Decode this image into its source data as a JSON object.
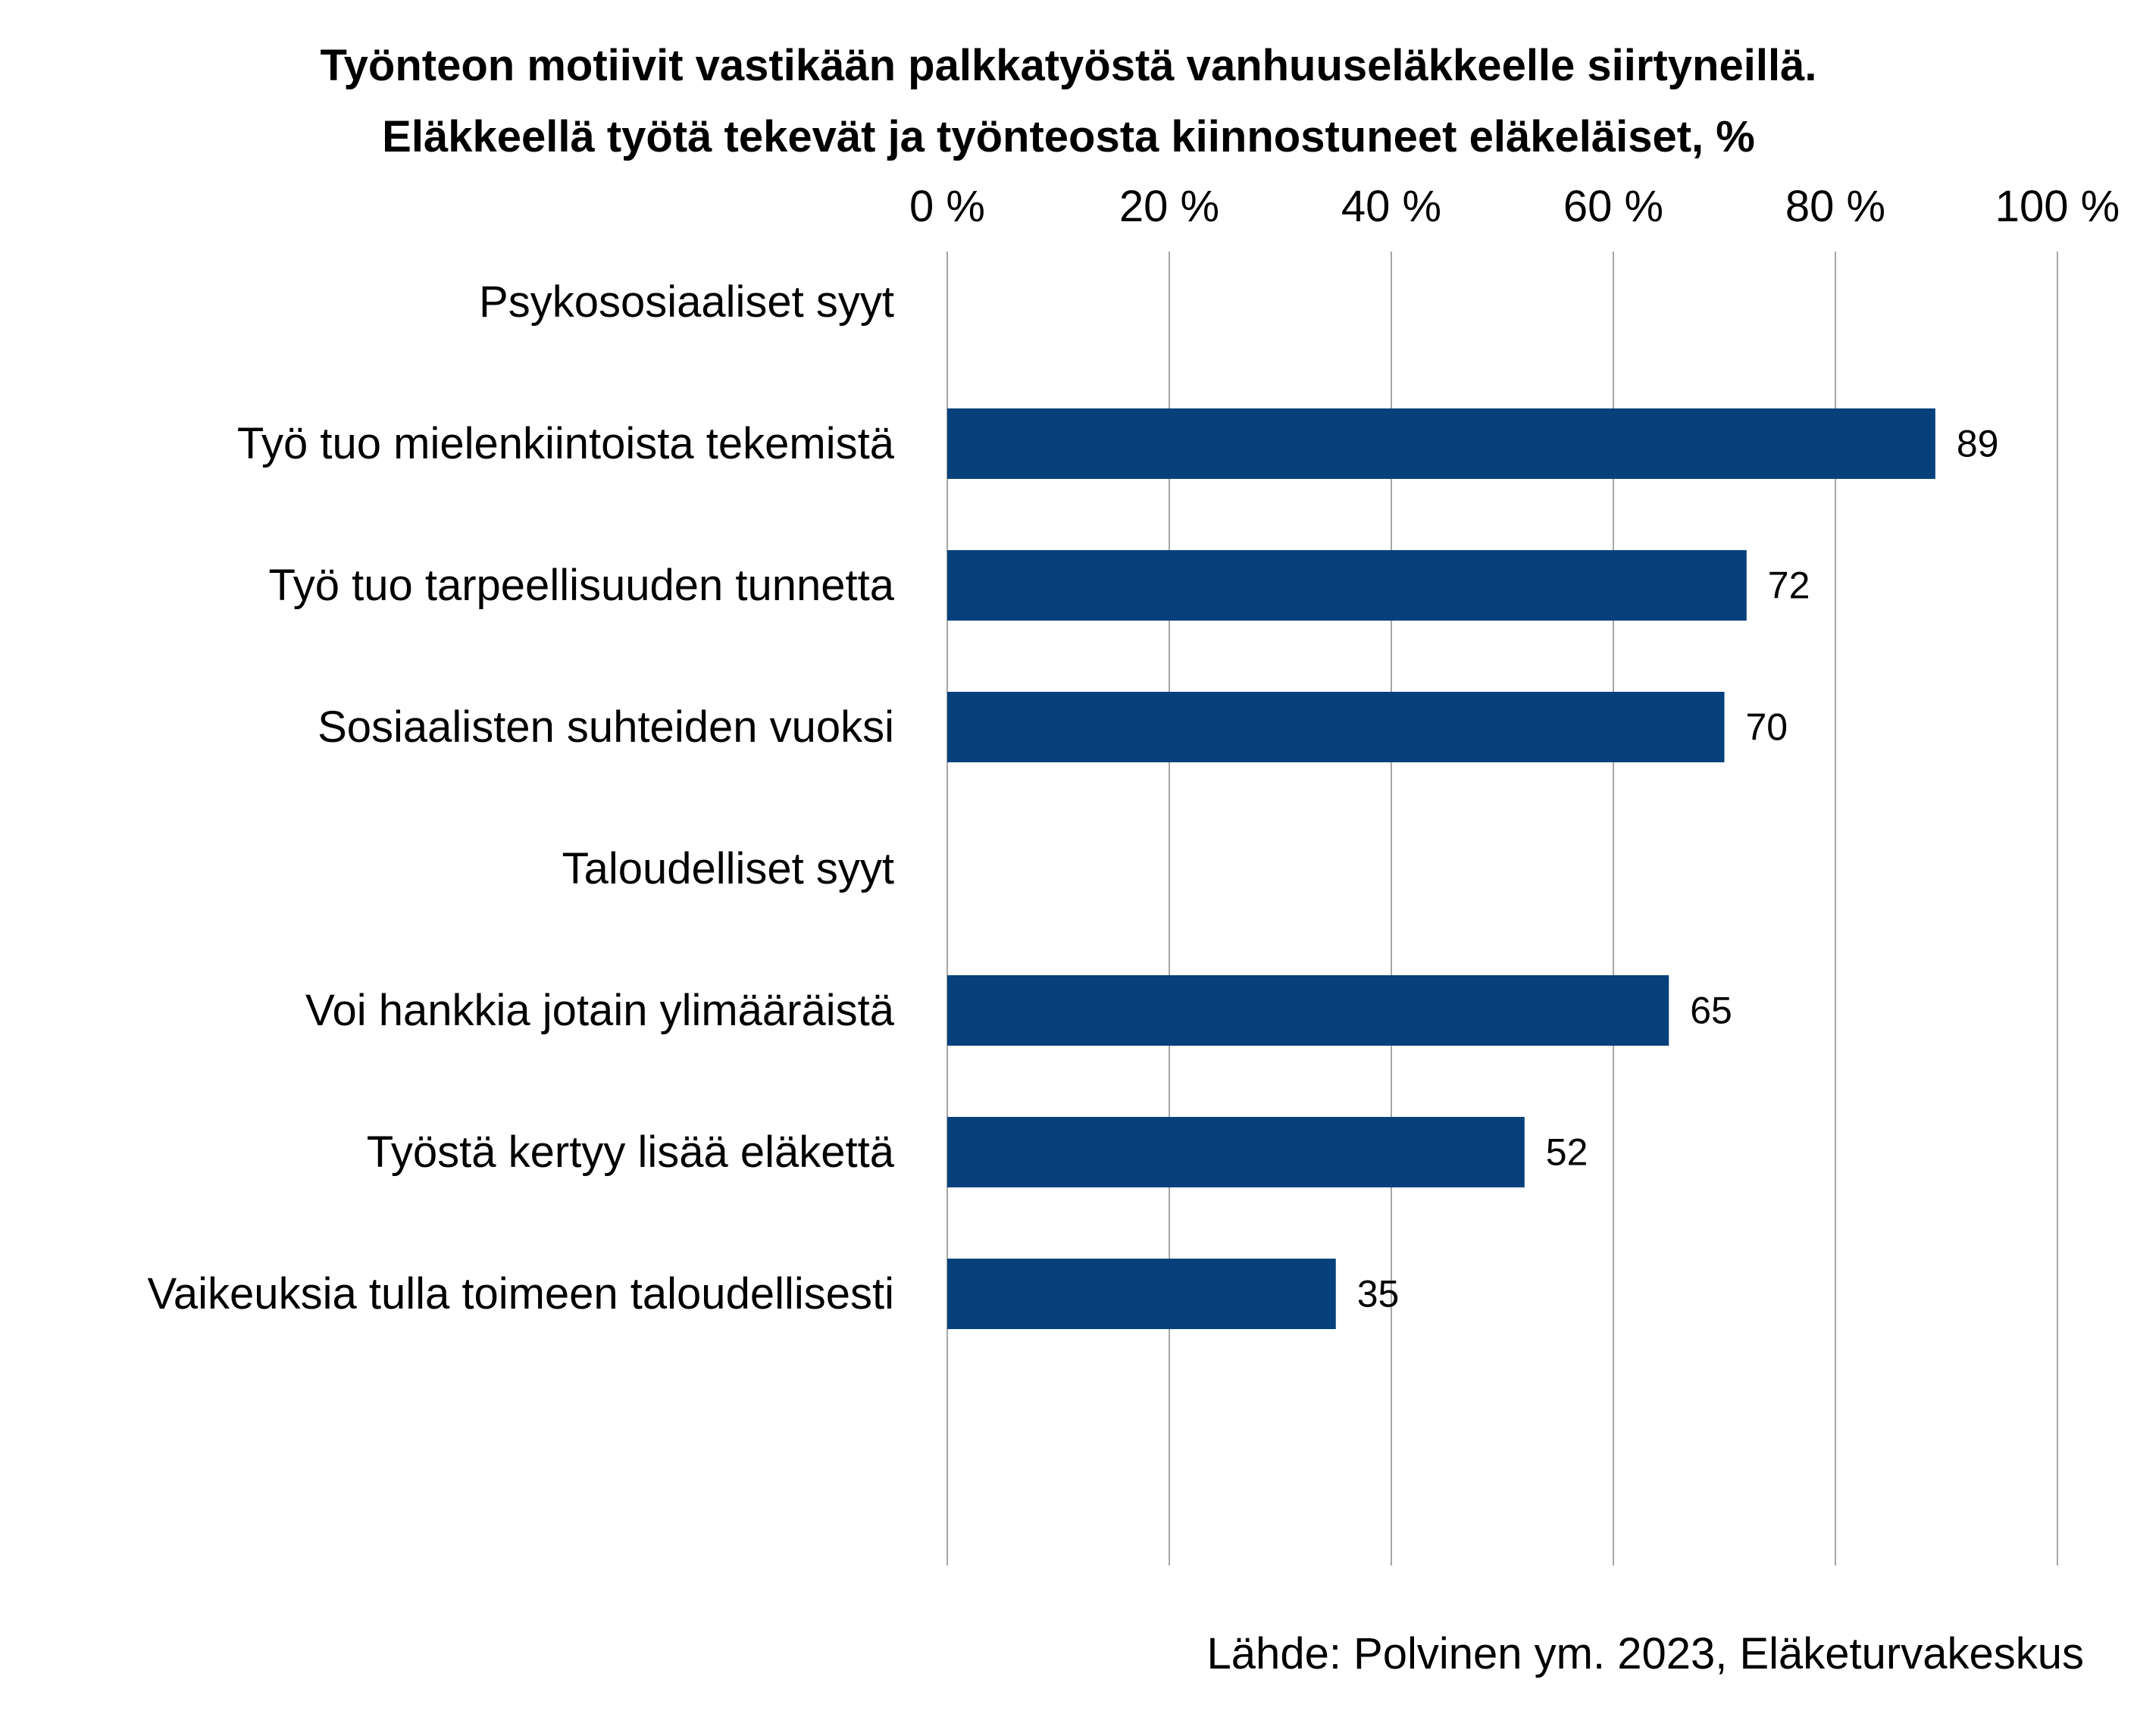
{
  "chart_data": {
    "type": "bar",
    "orientation": "horizontal",
    "title": "Työnteon motiivit vastikään palkkatyöstä vanhuuseläkkeelle siirtyneillä.",
    "subtitle": "Eläkkeellä työtä tekevät ja työnteosta kiinnostuneet eläkeläiset, %",
    "categories": [
      "Psykososiaaliset syyt",
      "Työ tuo mielenkiintoista tekemistä",
      "Työ tuo tarpeellisuuden tunnetta",
      "Sosiaalisten suhteiden vuoksi",
      "Taloudelliset syyt",
      "Voi hankkia jotain ylimääräistä",
      "Työstä kertyy lisää eläkettä",
      "Vaikeuksia tulla toimeen taloudellisesti"
    ],
    "values": [
      null,
      89,
      72,
      70,
      null,
      65,
      52,
      35
    ],
    "data_labels": [
      "",
      "89",
      "72",
      "70",
      "",
      "65",
      "52",
      "35"
    ],
    "xlim": [
      0,
      100
    ],
    "x_ticks": [
      0,
      20,
      40,
      60,
      80,
      100
    ],
    "x_tick_labels": [
      "0 %",
      "20 %",
      "40 %",
      "60 %",
      "80 %",
      "100 %"
    ],
    "x_axis_position": "top",
    "grid": true,
    "legend": "none",
    "bar_color": "#06417c",
    "grid_color": "#a6a6a6",
    "source": "Lähde: Polvinen ym. 2023, Eläketurvakeskus"
  }
}
